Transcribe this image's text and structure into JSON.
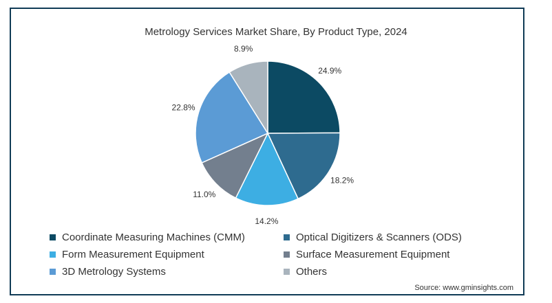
{
  "chart_data": {
    "type": "pie",
    "title": "Metrology Services Market Share, By Product Type, 2024",
    "slices": [
      {
        "label": "Coordinate Measuring Machines (CMM)",
        "value": 24.9,
        "display": "24.9%",
        "color": "#0c4a63"
      },
      {
        "label": "Optical Digitizers & Scanners (ODS)",
        "value": 18.2,
        "display": "18.2%",
        "color": "#2e6b8f"
      },
      {
        "label": "Form Measurement Equipment",
        "value": 14.2,
        "display": "14.2%",
        "color": "#3daee3"
      },
      {
        "label": "Surface Measurement Equipment",
        "value": 11.0,
        "display": "11.0%",
        "color": "#737f8e"
      },
      {
        "label": "3D Metrology Systems",
        "value": 22.8,
        "display": "22.8%",
        "color": "#5b9bd5"
      },
      {
        "label": "Others",
        "value": 8.9,
        "display": "8.9%",
        "color": "#a9b4bd"
      }
    ],
    "legend_position": "bottom",
    "start_angle": "12 o'clock",
    "direction": "clockwise"
  },
  "source": "Source: www.gminsights.com"
}
